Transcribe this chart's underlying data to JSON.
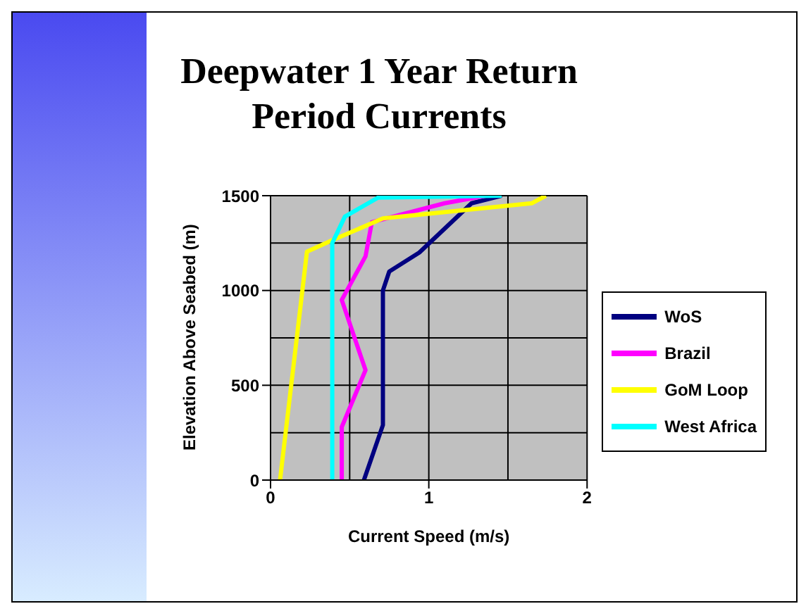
{
  "chart_data": {
    "type": "line",
    "title": "Deepwater 1 Year Return Period Currents",
    "xlabel": "Current Speed (m/s)",
    "ylabel": "Elevation Above Seabed (m)",
    "xlim": [
      0,
      2
    ],
    "xticks": [
      0,
      1,
      2
    ],
    "ylim": [
      0,
      1500
    ],
    "yticks": [
      0,
      500,
      1000,
      1500
    ],
    "grid": true,
    "legend": "right",
    "marker": "none",
    "series": [
      {
        "name": "WoS",
        "color": "#000080",
        "x": [
          0.59,
          0.71,
          0.71,
          0.75,
          0.94,
          1.27,
          1.46
        ],
        "values": [
          0,
          290,
          1000,
          1100,
          1200,
          1460,
          1500
        ]
      },
      {
        "name": "Brazil",
        "color": "#ff00ff",
        "x": [
          0.45,
          0.45,
          0.6,
          0.45,
          0.6,
          0.64,
          1.1,
          1.36
        ],
        "values": [
          0,
          280,
          580,
          950,
          1180,
          1360,
          1460,
          1500
        ]
      },
      {
        "name": "GoM Loop",
        "color": "#ffff00",
        "x": [
          0.06,
          0.23,
          0.39,
          0.71,
          1.65,
          1.74
        ],
        "values": [
          0,
          1205,
          1265,
          1380,
          1460,
          1500
        ]
      },
      {
        "name": "West Africa",
        "color": "#00ffff",
        "x": [
          0.39,
          0.39,
          0.47,
          0.68,
          1.46
        ],
        "values": [
          0,
          1250,
          1390,
          1490,
          1500
        ]
      }
    ]
  }
}
